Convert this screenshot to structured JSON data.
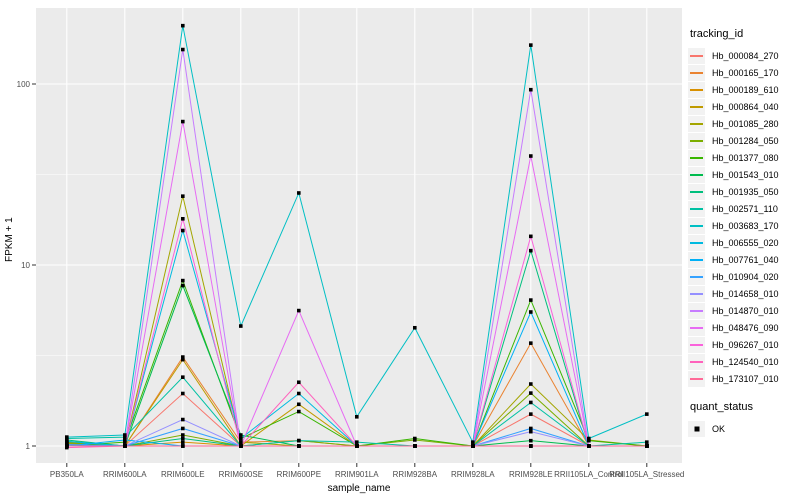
{
  "chart_data": {
    "type": "line",
    "title": "",
    "xlabel": "sample_name",
    "ylabel": "FPKM + 1",
    "y_scale": "log10",
    "y_ticks": [
      1,
      10,
      100
    ],
    "y_minor_ticks": [
      3.162,
      31.62
    ],
    "ylim": [
      0.78,
      330
    ],
    "grid": true,
    "legend_position": "right",
    "legend_title": "tracking_id",
    "panel_background": "#EBEBEB",
    "gridline_color": "#FFFFFF",
    "axis_text_color": "#4D4D4D",
    "tick_color": "#333333",
    "point_color": "#000000",
    "point_shape": "square",
    "categories": [
      "PB350LA",
      "RRIM600LA",
      "RRIM600LE",
      "RRIM600SE",
      "RRIM600PE",
      "RRIM901LA",
      "RRIM928BA",
      "RRIM928LA",
      "RRIM928LE",
      "RRII105LA_Control",
      "RRII105LA_Stressed"
    ],
    "series": [
      {
        "name": "Hb_000084_270",
        "color": "#F8766D",
        "values": [
          1.02,
          1.0,
          1.95,
          1.0,
          1.0,
          1.0,
          1.0,
          1.0,
          1.5,
          1.0,
          1.0
        ]
      },
      {
        "name": "Hb_000165_170",
        "color": "#EA8331",
        "values": [
          1.0,
          1.0,
          3.1,
          1.05,
          1.07,
          1.0,
          1.0,
          1.0,
          3.7,
          1.0,
          1.0
        ]
      },
      {
        "name": "Hb_000189_610",
        "color": "#D89000",
        "values": [
          1.03,
          1.0,
          1.05,
          1.0,
          1.0,
          1.0,
          1.0,
          1.0,
          1.0,
          1.0,
          1.0
        ]
      },
      {
        "name": "Hb_000864_040",
        "color": "#C09B00",
        "values": [
          1.05,
          1.0,
          3.0,
          1.0,
          1.7,
          1.0,
          1.0,
          1.0,
          1.0,
          1.0,
          1.0
        ]
      },
      {
        "name": "Hb_001085_280",
        "color": "#A3A500",
        "values": [
          1.0,
          1.0,
          24.0,
          1.05,
          1.0,
          1.0,
          1.0,
          1.0,
          2.2,
          1.08,
          1.0
        ]
      },
      {
        "name": "Hb_001284_050",
        "color": "#7CAE00",
        "values": [
          1.04,
          1.0,
          1.15,
          1.0,
          1.07,
          1.0,
          1.08,
          1.0,
          1.96,
          1.0,
          1.0
        ]
      },
      {
        "name": "Hb_001377_080",
        "color": "#39B600",
        "values": [
          1.0,
          1.05,
          8.2,
          1.1,
          1.55,
          1.0,
          1.1,
          1.0,
          6.4,
          1.07,
          1.0
        ]
      },
      {
        "name": "Hb_001543_010",
        "color": "#00BB4E",
        "values": [
          1.06,
          1.0,
          7.7,
          1.15,
          1.0,
          1.0,
          1.0,
          1.0,
          1.07,
          1.0,
          1.0
        ]
      },
      {
        "name": "Hb_001935_050",
        "color": "#00BF7D",
        "values": [
          1.08,
          1.0,
          1.1,
          1.0,
          1.0,
          1.0,
          1.0,
          1.0,
          12.0,
          1.0,
          1.0
        ]
      },
      {
        "name": "Hb_002571_110",
        "color": "#00C1A3",
        "values": [
          1.1,
          1.12,
          2.4,
          1.0,
          1.07,
          1.05,
          1.0,
          1.0,
          1.74,
          1.0,
          1.05
        ]
      },
      {
        "name": "Hb_003683_170",
        "color": "#00BFC4",
        "values": [
          1.12,
          1.15,
          210.0,
          4.6,
          25.0,
          1.45,
          4.5,
          1.05,
          164.0,
          1.1,
          1.5
        ]
      },
      {
        "name": "Hb_006555_020",
        "color": "#00BAE0",
        "values": [
          1.06,
          1.0,
          15.5,
          1.1,
          1.95,
          1.0,
          1.0,
          1.0,
          1.0,
          1.0,
          1.0
        ]
      },
      {
        "name": "Hb_007761_040",
        "color": "#00B0F6",
        "values": [
          1.0,
          1.08,
          1.0,
          1.0,
          1.0,
          1.0,
          1.0,
          1.0,
          5.5,
          1.0,
          1.0
        ]
      },
      {
        "name": "Hb_010904_020",
        "color": "#35A2FF",
        "values": [
          1.02,
          1.0,
          1.25,
          1.0,
          1.0,
          1.0,
          1.0,
          1.0,
          1.25,
          1.0,
          1.0
        ]
      },
      {
        "name": "Hb_014658_010",
        "color": "#9590FF",
        "values": [
          1.0,
          1.0,
          1.4,
          1.0,
          1.0,
          1.0,
          1.0,
          1.0,
          1.2,
          1.0,
          1.0
        ]
      },
      {
        "name": "Hb_014870_010",
        "color": "#C77CFF",
        "values": [
          1.0,
          1.0,
          155.0,
          1.0,
          1.0,
          1.0,
          1.0,
          1.0,
          93.0,
          1.0,
          1.0
        ]
      },
      {
        "name": "Hb_048476_090",
        "color": "#E76BF3",
        "values": [
          1.0,
          1.0,
          62.0,
          1.0,
          5.6,
          1.0,
          1.0,
          1.0,
          40.0,
          1.0,
          1.0
        ]
      },
      {
        "name": "Hb_096267_010",
        "color": "#FA62DB",
        "values": [
          1.0,
          1.0,
          18.0,
          1.0,
          1.0,
          1.0,
          1.0,
          1.0,
          14.4,
          1.0,
          1.0
        ]
      },
      {
        "name": "Hb_124540_010",
        "color": "#FF62BC",
        "values": [
          0.98,
          1.0,
          1.0,
          1.0,
          2.25,
          1.0,
          1.0,
          1.0,
          1.0,
          1.0,
          1.0
        ]
      },
      {
        "name": "Hb_173107_010",
        "color": "#FF6A98",
        "values": [
          1.0,
          1.0,
          1.0,
          1.0,
          1.0,
          1.0,
          1.0,
          1.0,
          1.0,
          1.0,
          1.0
        ]
      }
    ],
    "quant_legend": {
      "title": "quant_status",
      "items": [
        {
          "label": "OK",
          "marker": "black-square"
        }
      ]
    }
  }
}
